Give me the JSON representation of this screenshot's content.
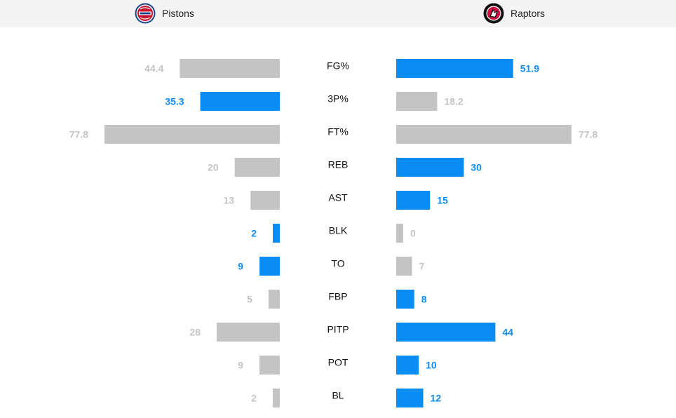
{
  "header": {
    "home_team": "Pistons",
    "away_team": "Raptors",
    "home_logo_icon": "pistons-logo-icon",
    "away_logo_icon": "raptors-logo-icon",
    "home_logo_text": "DETROIT PISTONS",
    "away_logo_text": "TORONTO RAPTORS"
  },
  "colors": {
    "leader": "#0a8cf5",
    "other": "#c4c4c4",
    "leader_text": "#0a8cf5",
    "other_text": "#c4c4c4",
    "pistons_red": "#c8102e",
    "pistons_blue": "#1d428a",
    "raptors_red": "#ce1141"
  },
  "chart_data": {
    "type": "bar",
    "orientation": "horizontal-mirrored",
    "categories": [
      "FG%",
      "3P%",
      "FT%",
      "REB",
      "AST",
      "BLK",
      "TO",
      "FBP",
      "PITP",
      "POT",
      "BL"
    ],
    "series": [
      {
        "name": "Pistons",
        "values": [
          44.4,
          35.3,
          77.8,
          20,
          13,
          2,
          9,
          5,
          28,
          9,
          2
        ],
        "labels": [
          "44.4",
          "35.3",
          "77.8",
          "20",
          "13",
          "2",
          "9",
          "5",
          "28",
          "9",
          "2"
        ]
      },
      {
        "name": "Raptors",
        "values": [
          51.9,
          18.2,
          77.8,
          30,
          15,
          0,
          7,
          8,
          44,
          10,
          12
        ],
        "labels": [
          "51.9",
          "18.2",
          "77.8",
          "30",
          "15",
          "0",
          "7",
          "8",
          "44",
          "10",
          "12"
        ]
      }
    ],
    "highlighted_side": [
      "Raptors",
      "Pistons",
      "none",
      "Raptors",
      "Raptors",
      "Pistons",
      "Pistons",
      "Raptors",
      "Raptors",
      "Raptors",
      "Raptors"
    ]
  }
}
